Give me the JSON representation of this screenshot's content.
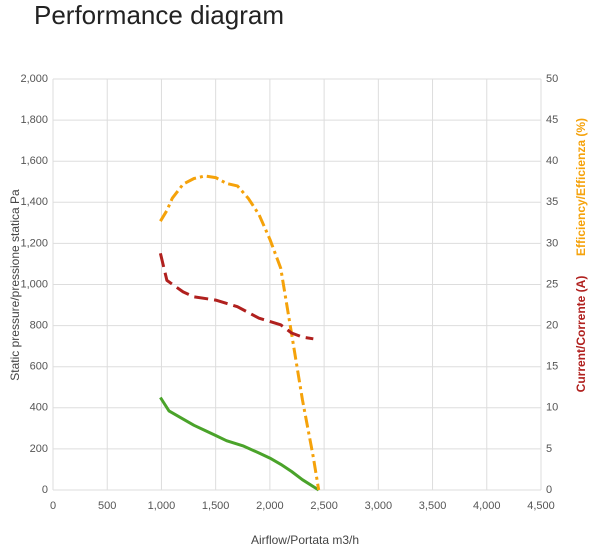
{
  "chart_data": {
    "type": "line",
    "title": "Performance diagram",
    "x_label": "Airflow/Portata m3/h",
    "y_label": "Static pressure/pressione statica Pa",
    "grid": true,
    "xlim": [
      0,
      4500
    ],
    "xticks": [
      0,
      500,
      {
        "value": 1000,
        "label": "1,000"
      },
      {
        "value": 1500,
        "label": "1,500"
      },
      {
        "value": 2000,
        "label": "2,000"
      },
      {
        "value": 2500,
        "label": "2,500"
      },
      {
        "value": 3000,
        "label": "3,000"
      },
      {
        "value": 3500,
        "label": "3,500"
      },
      {
        "value": 4000,
        "label": "4,000"
      },
      {
        "value": 4500,
        "label": "4,500"
      }
    ],
    "ylim": [
      0,
      2000
    ],
    "yticks": [
      0,
      200,
      400,
      600,
      800,
      {
        "value": 1000,
        "label": "1,000"
      },
      {
        "value": 1200,
        "label": "1,200"
      },
      {
        "value": 1400,
        "label": "1,400"
      },
      {
        "value": 1600,
        "label": "1,600"
      },
      {
        "value": 1800,
        "label": "1,800"
      },
      {
        "value": 2000,
        "label": "2,000"
      }
    ],
    "y2lim": [
      0,
      50
    ],
    "y2ticks": [
      0,
      5,
      10,
      15,
      20,
      25,
      30,
      35,
      40,
      45,
      50
    ],
    "series": [
      {
        "color": "#4aa32a",
        "dash": "solid",
        "x": [
          990,
          1070,
          1200,
          1300,
          1400,
          1500,
          1600,
          1750,
          1900,
          2000,
          2100,
          2200,
          2300,
          2450
        ],
        "values": [
          450,
          385,
          345,
          315,
          290,
          265,
          240,
          215,
          180,
          155,
          125,
          90,
          50,
          0
        ]
      },
      {
        "name": "Efficiency/Efficienza (%)",
        "axis": "y2",
        "color": "#f5a20a",
        "dash": "dashdot",
        "x": [
          990,
          1050,
          1100,
          1200,
          1300,
          1400,
          1500,
          1600,
          1700,
          1800,
          1900,
          2000,
          2100,
          2200,
          2300,
          2400,
          2450
        ],
        "values": [
          32.7,
          34,
          35.5,
          37.2,
          37.9,
          38.2,
          38,
          37.3,
          37,
          35.5,
          33.5,
          30.5,
          27,
          19,
          11,
          4,
          0
        ]
      },
      {
        "name": "Current/Corrente (A)",
        "axis": "y2",
        "color": "#b0201e",
        "dash": "dashed",
        "x": [
          990,
          1050,
          1200,
          1300,
          1500,
          1700,
          1900,
          2100,
          2200,
          2300,
          2400
        ],
        "values": [
          28.8,
          25.5,
          24.1,
          23.5,
          23.1,
          22.3,
          20.9,
          20.1,
          19.1,
          18.6,
          18.4
        ]
      }
    ]
  }
}
